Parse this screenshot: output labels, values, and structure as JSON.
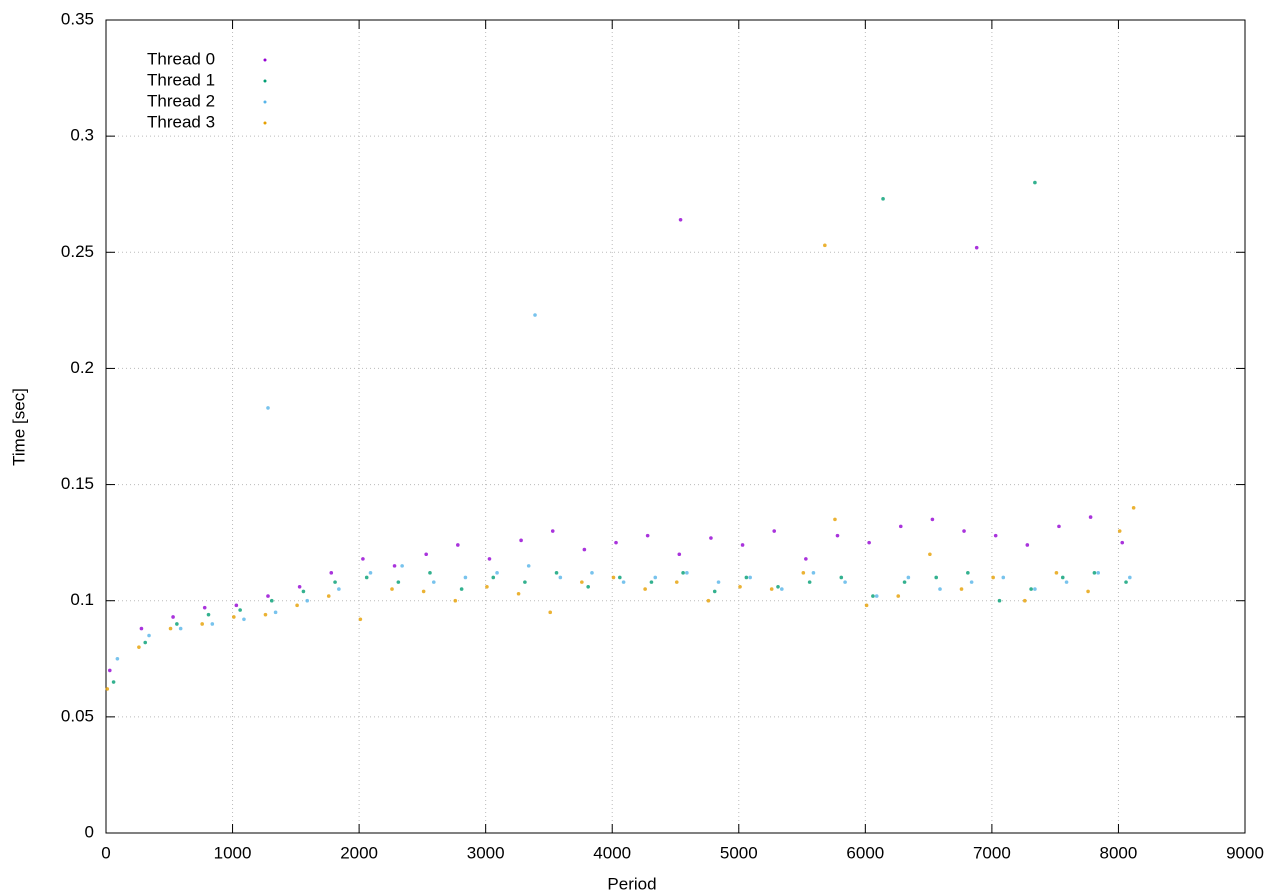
{
  "chart_data": {
    "type": "scatter",
    "xlabel": "Period",
    "ylabel": "Time [sec]",
    "xlim": [
      0,
      9000
    ],
    "xticks": [
      0,
      1000,
      2000,
      3000,
      4000,
      5000,
      6000,
      7000,
      8000,
      9000
    ],
    "ylim": [
      0,
      0.35
    ],
    "yticks": [
      0,
      0.05,
      0.1,
      0.15,
      0.2,
      0.25,
      0.3,
      0.35
    ],
    "grid": true,
    "legend": "top-left",
    "series": [
      {
        "name": "Thread 0",
        "color": "#9400d3",
        "x": [
          30,
          280,
          530,
          780,
          1030,
          1280,
          1530,
          1780,
          2030,
          2280,
          2530,
          2780,
          3030,
          3280,
          3530,
          3780,
          4030,
          4280,
          4530,
          4780,
          5030,
          5280,
          5530,
          5780,
          6030,
          6280,
          6530,
          6780,
          7030,
          7280,
          7530,
          7780,
          8030,
          4540,
          6880
        ],
        "values": [
          0.07,
          0.088,
          0.093,
          0.097,
          0.098,
          0.102,
          0.106,
          0.112,
          0.118,
          0.115,
          0.12,
          0.124,
          0.118,
          0.126,
          0.13,
          0.122,
          0.125,
          0.128,
          0.12,
          0.127,
          0.124,
          0.13,
          0.118,
          0.128,
          0.125,
          0.132,
          0.135,
          0.13,
          0.128,
          0.124,
          0.132,
          0.136,
          0.125,
          0.264,
          0.252
        ]
      },
      {
        "name": "Thread 1",
        "color": "#009e73",
        "x": [
          60,
          310,
          560,
          810,
          1060,
          1310,
          1560,
          1810,
          2060,
          2310,
          2560,
          2810,
          3060,
          3310,
          3560,
          3810,
          4060,
          4310,
          4560,
          4810,
          5060,
          5310,
          5560,
          5810,
          6060,
          6310,
          6560,
          6810,
          7060,
          7310,
          7560,
          7810,
          8060,
          6140,
          7340
        ],
        "values": [
          0.065,
          0.082,
          0.09,
          0.094,
          0.096,
          0.1,
          0.104,
          0.108,
          0.11,
          0.108,
          0.112,
          0.105,
          0.11,
          0.108,
          0.112,
          0.106,
          0.11,
          0.108,
          0.112,
          0.104,
          0.11,
          0.106,
          0.108,
          0.11,
          0.102,
          0.108,
          0.11,
          0.112,
          0.1,
          0.105,
          0.11,
          0.112,
          0.108,
          0.273,
          0.28
        ]
      },
      {
        "name": "Thread 2",
        "color": "#56b4e9",
        "x": [
          90,
          340,
          590,
          840,
          1090,
          1340,
          1590,
          1840,
          2090,
          2340,
          2590,
          2840,
          3090,
          3340,
          3590,
          3840,
          4090,
          4340,
          4590,
          4840,
          5090,
          5340,
          5590,
          5840,
          6090,
          6340,
          6590,
          6840,
          7090,
          7340,
          7590,
          7840,
          8090,
          1280,
          3390
        ],
        "values": [
          0.075,
          0.085,
          0.088,
          0.09,
          0.092,
          0.095,
          0.1,
          0.105,
          0.112,
          0.115,
          0.108,
          0.11,
          0.112,
          0.115,
          0.11,
          0.112,
          0.108,
          0.11,
          0.112,
          0.108,
          0.11,
          0.105,
          0.112,
          0.108,
          0.102,
          0.11,
          0.105,
          0.108,
          0.11,
          0.105,
          0.108,
          0.112,
          0.11,
          0.183,
          0.223
        ]
      },
      {
        "name": "Thread 3",
        "color": "#e69f00",
        "x": [
          10,
          260,
          510,
          760,
          1010,
          1260,
          1510,
          1760,
          2010,
          2260,
          2510,
          2760,
          3010,
          3260,
          3510,
          3760,
          4010,
          4260,
          4510,
          4760,
          5010,
          5260,
          5510,
          5760,
          6010,
          6260,
          6510,
          6760,
          7010,
          7260,
          7510,
          7760,
          8010,
          8120,
          5680
        ],
        "values": [
          0.062,
          0.08,
          0.088,
          0.09,
          0.093,
          0.094,
          0.098,
          0.102,
          0.092,
          0.105,
          0.104,
          0.1,
          0.106,
          0.103,
          0.095,
          0.108,
          0.11,
          0.105,
          0.108,
          0.1,
          0.106,
          0.105,
          0.112,
          0.135,
          0.098,
          0.102,
          0.12,
          0.105,
          0.11,
          0.1,
          0.112,
          0.104,
          0.13,
          0.14,
          0.253
        ]
      }
    ]
  }
}
